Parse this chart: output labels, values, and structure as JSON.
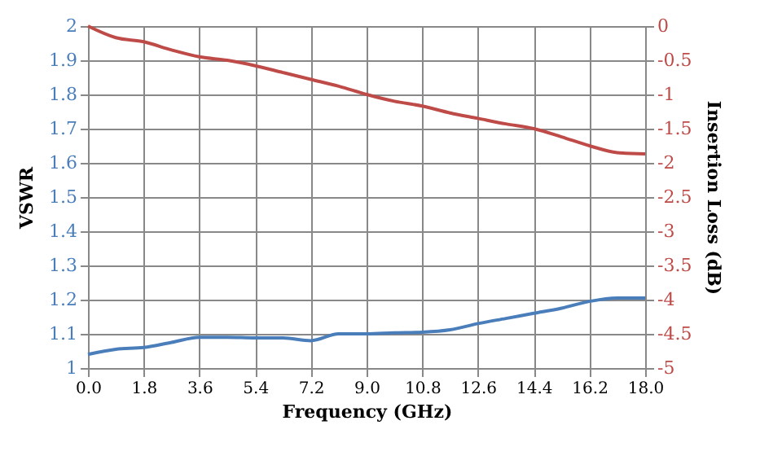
{
  "chart_data": {
    "type": "line",
    "xlabel": "Frequency (GHz)",
    "ylabel": "VSWR",
    "y2label": "Insertion Loss (dB)",
    "x": [
      0,
      0.9,
      1.8,
      2.7,
      3.6,
      4.5,
      5.4,
      6.3,
      7.2,
      8.1,
      9,
      9.9,
      10.8,
      11.7,
      12.6,
      13.5,
      14.4,
      15.3,
      16.2,
      17.1,
      18
    ],
    "series": [
      {
        "color": "#4a7ebb",
        "values": [
          1.04,
          1.055,
          1.06,
          1.075,
          1.09,
          1.09,
          1.088,
          1.088,
          1.08,
          1.1,
          1.1,
          1.103,
          1.105,
          1.112,
          1.13,
          1.145,
          1.16,
          1.175,
          1.195,
          1.205,
          1.205
        ]
      },
      {
        "color": "#be4b48",
        "axis": "y2",
        "values": [
          0,
          -0.17,
          -0.23,
          -0.35,
          -0.45,
          -0.5,
          -0.58,
          -0.68,
          -0.78,
          -0.88,
          -1.0,
          -1.1,
          -1.17,
          -1.27,
          -1.35,
          -1.43,
          -1.5,
          -1.62,
          -1.75,
          -1.85,
          -1.87
        ]
      }
    ],
    "xlim": [
      0,
      18
    ],
    "xticks": [
      {
        "value": 0,
        "label": "0.0"
      },
      1.8,
      3.6,
      5.4,
      7.2,
      {
        "value": 9,
        "label": "9.0"
      },
      10.8,
      12.6,
      14.4,
      16.2,
      {
        "value": 18,
        "label": "18.0"
      }
    ],
    "ylim": [
      1,
      2
    ],
    "yticks": [
      1,
      1.1,
      1.2,
      1.3,
      1.4,
      1.5,
      1.6,
      1.7,
      1.8,
      1.9,
      2
    ],
    "y2lim": [
      -5,
      0
    ],
    "y2ticks": [
      -5,
      -4.5,
      -4,
      -3.5,
      -3,
      -2.5,
      -2,
      -1.5,
      -1,
      -0.5,
      0
    ],
    "grid": true,
    "line_style": "solid",
    "marker": "none"
  }
}
